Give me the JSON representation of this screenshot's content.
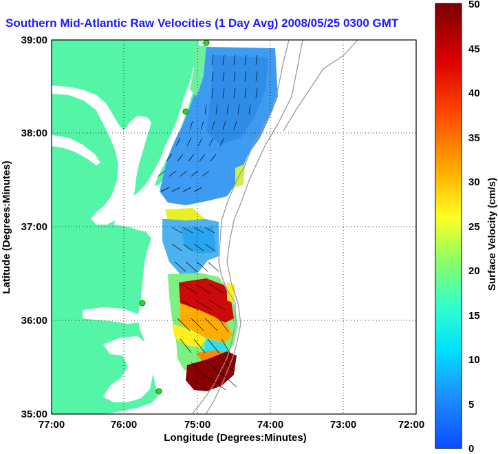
{
  "title": "Southern Mid-Atlantic Raw Velocities (1 Day Avg) 2008/05/25 0300 GMT",
  "x_axis": {
    "label": "Longitude (Degrees:Minutes)",
    "ticks": [
      "77:00",
      "76:00",
      "75:00",
      "74:00",
      "73:00",
      "72:00"
    ]
  },
  "y_axis": {
    "label": "Latitude (Degrees:Minutes)",
    "ticks": [
      "39:00",
      "38:00",
      "37:00",
      "36:00",
      "35:00"
    ]
  },
  "colorbar": {
    "label": "Surface Velocity (cm/s)",
    "ticks": [
      "50",
      "45",
      "40",
      "35",
      "30",
      "25",
      "20",
      "15",
      "10",
      "5",
      "0"
    ],
    "range": [
      0,
      50
    ]
  },
  "colors": {
    "land": "#55f5a8",
    "water": "#ffffff",
    "title": "#1a1aff",
    "station": "#22dd22"
  }
}
